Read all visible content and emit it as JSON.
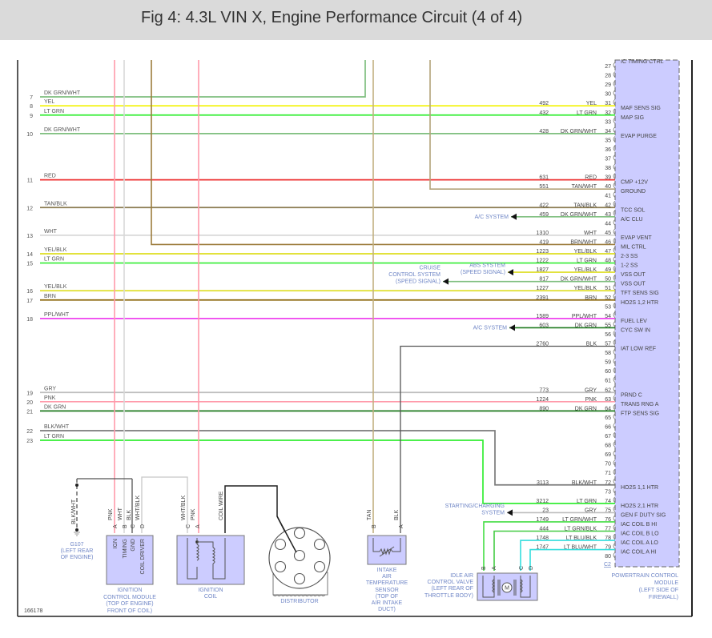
{
  "title": "Fig 4: 4.3L VIN X, Engine Performance Circuit (4 of 4)",
  "figure_id": "166178",
  "colors": {
    "YEL": "#f2f200",
    "LT GRN": "#33ee33",
    "DK GRN/WHT": "#7fbf7f",
    "DK GRN": "#1f7a1f",
    "RED": "#ee3333",
    "TAN/BLK": "#8b7b50",
    "TAN/WHT": "#b3a37a",
    "WHT": "#d8d8d8",
    "BRN/WHT": "#9c7c3c",
    "YEL/BLK": "#dede20",
    "BRN": "#8b6508",
    "PPL/WHT": "#ee44ee",
    "GRY": "#bdbdbd",
    "PNK": "#ff9aaa",
    "BLK": "#555555",
    "BLK/WHT": "#7a7a7a",
    "LT GRN/WHT": "#44dd44",
    "LT GRN/BLK": "#44cc44",
    "LT BLU/BLK": "#33dddd",
    "LT BLU/WHT": "#33dddd",
    "TAN": "#c2b080",
    "WHT/BLK": "#c8c8c8",
    "module_fill": "#ccccff",
    "label_blue": "#6f86c6"
  },
  "rows": [
    {
      "num": "7",
      "label": "DK GRN/WHT"
    },
    {
      "num": "8",
      "label": "YEL",
      "pin": 31
    },
    {
      "num": "9",
      "label": "LT GRN",
      "pin": 32
    },
    {
      "num": "10",
      "label": "DK GRN/WHT",
      "pin": 34
    },
    {
      "num": "11",
      "label": "RED",
      "pin": 39
    },
    {
      "num": "12",
      "label": "TAN/BLK",
      "pin": 42
    },
    {
      "num": "13",
      "label": "WHT",
      "pin": 45
    },
    {
      "num": "14",
      "label": "YEL/BLK",
      "pin": 47
    },
    {
      "num": "15",
      "label": "LT GRN",
      "pin": 48
    },
    {
      "num": "16",
      "label": "YEL/BLK",
      "pin": 51
    },
    {
      "num": "17",
      "label": "BRN",
      "pin": 52
    },
    {
      "num": "18",
      "label": "PPL/WHT",
      "pin": 54
    },
    {
      "num": "19",
      "label": "GRY",
      "pin": 62
    },
    {
      "num": "20",
      "label": "PNK",
      "pin": 63
    },
    {
      "num": "21",
      "label": "DK GRN",
      "pin": 64
    },
    {
      "num": "22",
      "label": "BLK/WHT",
      "pin": 72
    },
    {
      "num": "23",
      "label": "LT GRN",
      "pin": 74
    }
  ],
  "pcm": {
    "top_function": "IC TIMING CTRL",
    "connector": "C2",
    "name_lines": [
      "POWERTRAIN CONTROL",
      "MODULE",
      "(LEFT SIDE OF",
      "FIREWALL)"
    ],
    "pins": [
      {
        "pin": 27
      },
      {
        "pin": 28
      },
      {
        "pin": 29
      },
      {
        "pin": 30
      },
      {
        "pin": 31,
        "circuit": "492",
        "color": "YEL",
        "func": "MAF SENS SIG"
      },
      {
        "pin": 32,
        "circuit": "432",
        "color": "LT GRN",
        "func": "MAP SIG"
      },
      {
        "pin": 33
      },
      {
        "pin": 34,
        "circuit": "428",
        "color": "DK GRN/WHT",
        "func": "EVAP PURGE"
      },
      {
        "pin": 35
      },
      {
        "pin": 36
      },
      {
        "pin": 37
      },
      {
        "pin": 38
      },
      {
        "pin": 39,
        "circuit": "631",
        "color": "RED",
        "func": "CMP +12V"
      },
      {
        "pin": 40,
        "circuit": "551",
        "color": "TAN/WHT",
        "func": "GROUND"
      },
      {
        "pin": 41
      },
      {
        "pin": 42,
        "circuit": "422",
        "color": "TAN/BLK",
        "func": "TCC SOL"
      },
      {
        "pin": 43,
        "circuit": "459",
        "color": "DK GRN/WHT",
        "func": "A/C CLU",
        "to_system": [
          "A/C SYSTEM"
        ]
      },
      {
        "pin": 44
      },
      {
        "pin": 45,
        "circuit": "1310",
        "color": "WHT",
        "func": "EVAP VENT"
      },
      {
        "pin": 46,
        "circuit": "419",
        "color": "BRN/WHT",
        "func": "MIL CTRL"
      },
      {
        "pin": 47,
        "circuit": "1223",
        "color": "YEL/BLK",
        "func": "2-3 SS"
      },
      {
        "pin": 48,
        "circuit": "1222",
        "color": "LT GRN",
        "func": "1-2 SS"
      },
      {
        "pin": 49,
        "circuit": "1827",
        "color": "YEL/BLK",
        "func": "VSS OUT",
        "to_system": [
          "ABS SYSTEM",
          "(SPEED SIGNAL)"
        ]
      },
      {
        "pin": 50,
        "circuit": "817",
        "color": "DK GRN/WHT",
        "func": "VSS OUT",
        "to_system": [
          "CRUISE",
          "CONTROL SYSTEM",
          "(SPEED SIGNAL)"
        ]
      },
      {
        "pin": 51,
        "circuit": "1227",
        "color": "YEL/BLK",
        "func": "TFT SENS SIG"
      },
      {
        "pin": 52,
        "circuit": "2391",
        "color": "BRN",
        "func": "HO2S 1,2 HTR"
      },
      {
        "pin": 53
      },
      {
        "pin": 54,
        "circuit": "1589",
        "color": "PPL/WHT",
        "func": "FUEL LEV"
      },
      {
        "pin": 55,
        "circuit": "603",
        "color": "DK GRN",
        "func": "CYC SW IN",
        "to_system": [
          "A/C SYSTEM"
        ]
      },
      {
        "pin": 56
      },
      {
        "pin": 57,
        "circuit": "2760",
        "color": "BLK",
        "func": "IAT LOW REF"
      },
      {
        "pin": 58
      },
      {
        "pin": 59
      },
      {
        "pin": 60
      },
      {
        "pin": 61
      },
      {
        "pin": 62,
        "circuit": "773",
        "color": "GRY",
        "func": "PRND C"
      },
      {
        "pin": 63,
        "circuit": "1224",
        "color": "PNK",
        "func": "TRANS RNG A"
      },
      {
        "pin": 64,
        "circuit": "890",
        "color": "DK GRN",
        "func": "FTP SENS SIG"
      },
      {
        "pin": 65
      },
      {
        "pin": 66
      },
      {
        "pin": 67
      },
      {
        "pin": 68
      },
      {
        "pin": 69
      },
      {
        "pin": 70
      },
      {
        "pin": 71
      },
      {
        "pin": 72,
        "circuit": "3113",
        "color": "BLK/WHT",
        "func": "HO2S 1,1 HTR"
      },
      {
        "pin": 73
      },
      {
        "pin": 74,
        "circuit": "3212",
        "color": "LT GRN",
        "func": "HO2S 2,1 HTR"
      },
      {
        "pin": 75,
        "circuit": "23",
        "color": "GRY",
        "func": "GEN F DUTY SIG",
        "to_system": [
          "STARTING/CHARGING",
          "SYSTEM"
        ]
      },
      {
        "pin": 76,
        "circuit": "1749",
        "color": "LT GRN/WHT",
        "func": "IAC COIL B HI"
      },
      {
        "pin": 77,
        "circuit": "444",
        "color": "LT GRN/BLK",
        "func": "IAC COIL B LO"
      },
      {
        "pin": 78,
        "circuit": "1748",
        "color": "LT BLU/BLK",
        "func": "IAC COIL A LO"
      },
      {
        "pin": 79,
        "circuit": "1747",
        "color": "LT BLU/WHT",
        "func": "IAC COIL A HI"
      },
      {
        "pin": 80
      }
    ]
  },
  "ground": {
    "wire": "BLK/WHT",
    "name_lines": [
      "G107",
      "(LEFT REAR",
      "OF ENGINE)"
    ]
  },
  "icm": {
    "pins": [
      "A",
      "B",
      "C",
      "D"
    ],
    "wires": [
      "PNK",
      "WHT",
      "BLK",
      "WHT/BLK"
    ],
    "terminals": [
      "IGN",
      "TIMING",
      "GND",
      "COIL DRIVER"
    ],
    "name_lines": [
      "IGNITION",
      "CONTROL MODULE",
      "(TOP OF ENGINE)",
      "FRONT OF COIL)"
    ]
  },
  "coil": {
    "pins": [
      "C",
      "A"
    ],
    "wires": [
      "WHT/BLK",
      "PNK",
      "COIL WIRE"
    ],
    "name_lines": [
      "IGNITION",
      "COIL"
    ]
  },
  "distributor": {
    "name": "DISTRIBUTOR"
  },
  "iat": {
    "pins": [
      "B",
      "A"
    ],
    "wires": [
      "TAN",
      "BLK"
    ],
    "name_lines": [
      "INTAKE",
      "AIR",
      "TEMPERATURE",
      "SENSOR",
      "(TOP OF",
      "AIR INTAKE",
      "DUCT)"
    ]
  },
  "iac": {
    "pins": [
      "B",
      "A",
      "C",
      "D"
    ],
    "motor": "M",
    "name_lines": [
      "IDLE AIR",
      "CONTROL VALVE",
      "(LEFT REAR OF",
      "THROTTLE BODY)"
    ]
  }
}
